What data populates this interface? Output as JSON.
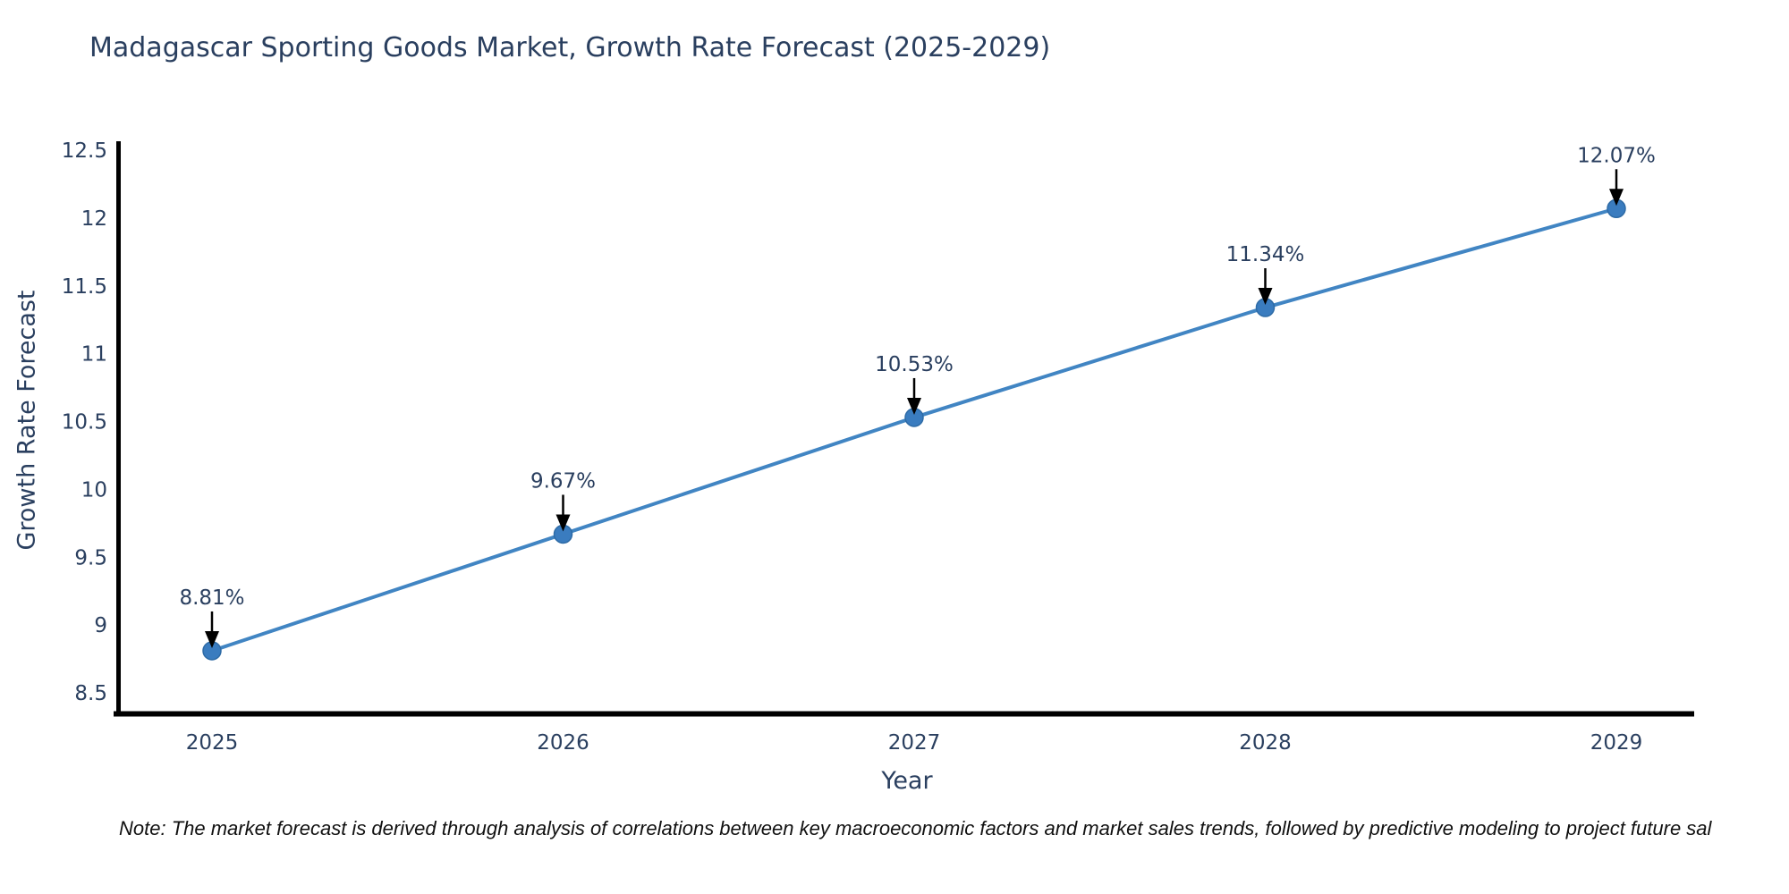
{
  "chart_data": {
    "type": "line",
    "title": "Madagascar Sporting Goods Market, Growth Rate Forecast (2025-2029)",
    "xlabel": "Year",
    "ylabel": "Growth Rate Forecast",
    "x": [
      2025,
      2026,
      2027,
      2028,
      2029
    ],
    "series": [
      {
        "name": "Growth Rate Forecast",
        "values": [
          8.81,
          9.67,
          10.53,
          11.34,
          12.07
        ]
      }
    ],
    "point_labels": [
      "8.81%",
      "9.67%",
      "10.53%",
      "11.34%",
      "12.07%"
    ],
    "yticks": [
      8.5,
      9,
      9.5,
      10,
      10.5,
      11,
      11.5,
      12,
      12.5
    ],
    "ylim": [
      8.3,
      12.6
    ],
    "grid": false,
    "legend_position": "none",
    "line_color": "#4185c3",
    "marker_color": "#3a7cbf",
    "marker_edge_color": "#2e6ba6",
    "axis_line_color": "#000000",
    "annotation_arrow_color": "#000000",
    "text_color": "#2a3f5f"
  },
  "note": {
    "text": "Note: The market forecast is derived through analysis of correlations between key macroeconomic factors and market sales trends, followed by predictive modeling to project future sal"
  }
}
